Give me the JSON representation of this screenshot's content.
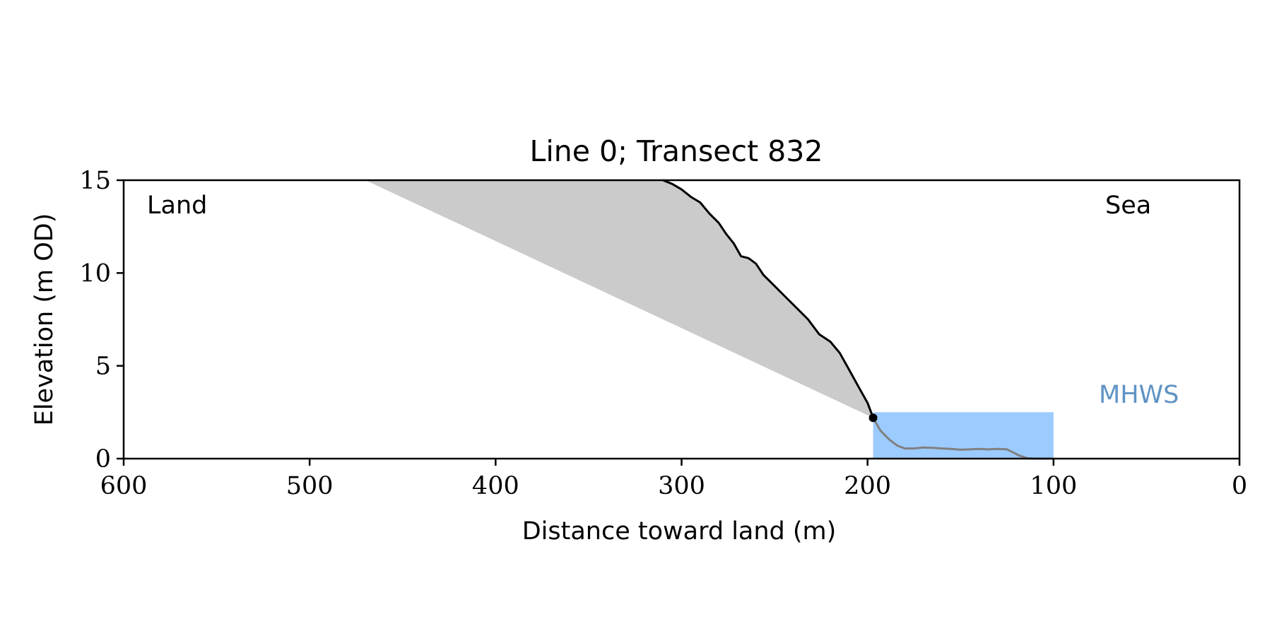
{
  "chart_data": {
    "type": "area",
    "title": "Line 0; Transect 832",
    "xlabel": "Distance toward land (m)",
    "ylabel": "Elevation (m OD)",
    "xlim": [
      600,
      0
    ],
    "ylim": [
      0,
      15
    ],
    "x_ticks": [
      600,
      500,
      400,
      300,
      200,
      100,
      0
    ],
    "y_ticks": [
      0,
      5,
      10,
      15
    ],
    "grid": false,
    "annotations": {
      "land": "Land",
      "sea": "Sea",
      "mhws": "MHWS"
    },
    "mhws_level": 2.5,
    "mhws_range": [
      197,
      100
    ],
    "cliff_toe": {
      "x": 197,
      "y": 2.2
    },
    "cliff_profile": [
      [
        310,
        15.0
      ],
      [
        305,
        14.8
      ],
      [
        300,
        14.5
      ],
      [
        295,
        14.1
      ],
      [
        290,
        13.8
      ],
      [
        285,
        13.2
      ],
      [
        280,
        12.7
      ],
      [
        276,
        12.1
      ],
      [
        272,
        11.6
      ],
      [
        268,
        10.9
      ],
      [
        264,
        10.8
      ],
      [
        260,
        10.5
      ],
      [
        256,
        9.9
      ],
      [
        250,
        9.3
      ],
      [
        244,
        8.7
      ],
      [
        238,
        8.1
      ],
      [
        232,
        7.5
      ],
      [
        226,
        6.7
      ],
      [
        220,
        6.3
      ],
      [
        215,
        5.7
      ],
      [
        210,
        4.8
      ],
      [
        205,
        3.9
      ],
      [
        200,
        3.0
      ],
      [
        197,
        2.2
      ]
    ],
    "seabed_profile": [
      [
        197,
        2.2
      ],
      [
        193,
        1.5
      ],
      [
        188,
        1.0
      ],
      [
        184,
        0.7
      ],
      [
        180,
        0.55
      ],
      [
        175,
        0.55
      ],
      [
        170,
        0.6
      ],
      [
        165,
        0.58
      ],
      [
        160,
        0.55
      ],
      [
        155,
        0.52
      ],
      [
        150,
        0.48
      ],
      [
        145,
        0.5
      ],
      [
        140,
        0.52
      ],
      [
        135,
        0.5
      ],
      [
        130,
        0.52
      ],
      [
        125,
        0.5
      ],
      [
        122,
        0.35
      ],
      [
        118,
        0.15
      ],
      [
        114,
        0.02
      ],
      [
        110,
        0.0
      ],
      [
        100,
        0.0
      ]
    ],
    "erosion_wedge": [
      [
        470,
        15.0
      ],
      [
        310,
        15.0
      ],
      [
        197,
        2.2
      ]
    ],
    "colors": {
      "cliff_line": "#000000",
      "seabed_line": "#808080",
      "wedge_fill": "#cbcbcb",
      "mhws_fill": "#9ccbff",
      "mhws_label": "#5f93c4"
    }
  }
}
